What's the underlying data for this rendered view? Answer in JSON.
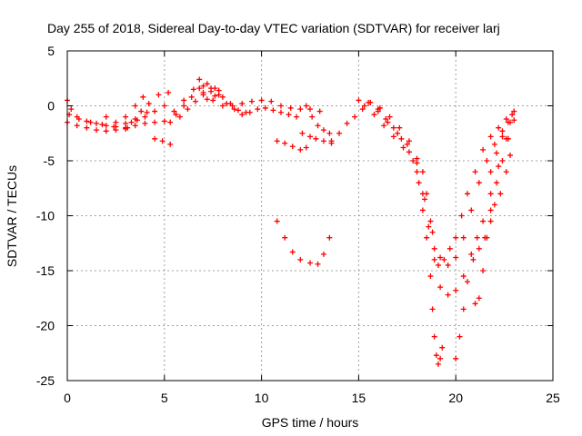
{
  "chart_data": {
    "type": "scatter",
    "title": "Day 255 of 2018, Sidereal Day-to-day VTEC variation (SDTVAR) for receiver larj",
    "xlabel": "GPS time / hours",
    "ylabel": "SDTVAR / TECUs",
    "xlim": [
      0,
      25
    ],
    "ylim": [
      -25,
      5
    ],
    "xticks": [
      0,
      5,
      10,
      15,
      20,
      25
    ],
    "yticks": [
      5,
      0,
      -5,
      -10,
      -15,
      -20,
      -25
    ],
    "grid": true,
    "marker": "plus",
    "color": "#ff0000",
    "series": [
      {
        "points": [
          [
            0.0,
            0.5
          ],
          [
            0.2,
            -0.3
          ],
          [
            0.5,
            -1.0
          ],
          [
            1.0,
            -1.4
          ],
          [
            1.5,
            -1.6
          ],
          [
            2.0,
            -1.8
          ],
          [
            2.5,
            -1.9
          ],
          [
            3.0,
            -1.6
          ],
          [
            3.5,
            -1.2
          ],
          [
            4.0,
            -1.0
          ],
          [
            4.5,
            -0.5
          ],
          [
            5.0,
            0.0
          ],
          [
            0.0,
            -1.5
          ],
          [
            0.5,
            -1.8
          ],
          [
            1.0,
            -2.0
          ],
          [
            1.5,
            -2.2
          ],
          [
            2.0,
            -2.3
          ],
          [
            2.5,
            -2.2
          ],
          [
            3.0,
            -2.0
          ],
          [
            3.5,
            -1.8
          ],
          [
            4.0,
            -1.6
          ],
          [
            4.5,
            -1.5
          ],
          [
            5.0,
            -1.4
          ],
          [
            0.1,
            -0.8
          ],
          [
            0.6,
            -1.2
          ],
          [
            1.2,
            -1.5
          ],
          [
            1.8,
            -1.7
          ],
          [
            2.4,
            -1.9
          ],
          [
            3.0,
            -2.1
          ],
          [
            3.3,
            -1.5
          ],
          [
            3.8,
            -0.5
          ],
          [
            4.2,
            0.2
          ],
          [
            4.7,
            1.0
          ],
          [
            5.2,
            1.2
          ],
          [
            2.0,
            -1.0
          ],
          [
            2.5,
            -1.5
          ],
          [
            3.0,
            -1.0
          ],
          [
            3.5,
            0.0
          ],
          [
            3.9,
            0.8
          ],
          [
            3.1,
            -2.0
          ],
          [
            3.6,
            -1.3
          ],
          [
            4.1,
            -0.6
          ],
          [
            4.5,
            -3.0
          ],
          [
            4.9,
            -3.2
          ],
          [
            5.3,
            -3.5
          ],
          [
            5.3,
            -1.5
          ],
          [
            5.6,
            -0.8
          ],
          [
            6.0,
            0.0
          ],
          [
            6.4,
            0.8
          ],
          [
            6.8,
            1.6
          ],
          [
            7.2,
            2.0
          ],
          [
            7.6,
            1.6
          ],
          [
            8.0,
            0.8
          ],
          [
            8.4,
            0.2
          ],
          [
            8.8,
            -0.4
          ],
          [
            9.2,
            -0.6
          ],
          [
            5.5,
            -0.5
          ],
          [
            6.0,
            0.5
          ],
          [
            6.5,
            1.5
          ],
          [
            6.8,
            2.4
          ],
          [
            7.0,
            1.8
          ],
          [
            7.5,
            0.5
          ],
          [
            8.0,
            0.0
          ],
          [
            8.5,
            0.0
          ],
          [
            9.0,
            0.2
          ],
          [
            9.5,
            0.4
          ],
          [
            10.0,
            0.5
          ],
          [
            10.5,
            0.4
          ],
          [
            11.0,
            0.0
          ],
          [
            11.5,
            -0.2
          ],
          [
            12.0,
            -0.3
          ],
          [
            12.5,
            -0.3
          ],
          [
            13.0,
            -0.5
          ],
          [
            5.8,
            -1.0
          ],
          [
            6.2,
            -0.3
          ],
          [
            6.6,
            0.4
          ],
          [
            7.0,
            1.0
          ],
          [
            7.4,
            1.3
          ],
          [
            7.8,
            1.0
          ],
          [
            8.2,
            0.2
          ],
          [
            8.6,
            -0.3
          ],
          [
            9.0,
            -0.8
          ],
          [
            9.4,
            -0.6
          ],
          [
            9.8,
            -0.3
          ],
          [
            10.2,
            -0.2
          ],
          [
            10.6,
            -0.4
          ],
          [
            11.0,
            -0.6
          ],
          [
            11.4,
            -0.8
          ],
          [
            11.8,
            -1.0
          ],
          [
            7.0,
            1.2
          ],
          [
            7.2,
            0.6
          ],
          [
            7.4,
            1.6
          ],
          [
            7.6,
            0.9
          ],
          [
            7.8,
            1.4
          ],
          [
            10.8,
            -3.2
          ],
          [
            11.2,
            -3.4
          ],
          [
            11.6,
            -3.7
          ],
          [
            12.0,
            -4.0
          ],
          [
            12.3,
            -3.8
          ],
          [
            12.1,
            -2.5
          ],
          [
            12.5,
            -2.8
          ],
          [
            12.8,
            -3.0
          ],
          [
            13.2,
            -3.2
          ],
          [
            13.6,
            -3.4
          ],
          [
            12.3,
            0.0
          ],
          [
            12.6,
            -1.0
          ],
          [
            12.9,
            -1.8
          ],
          [
            13.2,
            -2.2
          ],
          [
            13.5,
            -2.5
          ],
          [
            10.8,
            -10.5
          ],
          [
            11.2,
            -12.0
          ],
          [
            11.6,
            -13.3
          ],
          [
            12.0,
            -14.0
          ],
          [
            12.5,
            -14.3
          ],
          [
            12.9,
            -14.4
          ],
          [
            13.2,
            -13.5
          ],
          [
            13.5,
            -12.0
          ],
          [
            13.6,
            -3.2
          ],
          [
            14.0,
            -2.5
          ],
          [
            14.4,
            -1.6
          ],
          [
            14.8,
            -1.0
          ],
          [
            15.2,
            -0.3
          ],
          [
            15.6,
            0.3
          ],
          [
            15.0,
            0.5
          ],
          [
            15.5,
            0.3
          ],
          [
            16.0,
            -0.5
          ],
          [
            16.5,
            -1.5
          ],
          [
            17.0,
            -2.5
          ],
          [
            17.5,
            -3.5
          ],
          [
            18.0,
            -4.8
          ],
          [
            18.3,
            -6.0
          ],
          [
            18.5,
            -8.0
          ],
          [
            18.7,
            -10.5
          ],
          [
            18.9,
            -13.0
          ],
          [
            19.1,
            -14.5
          ],
          [
            19.4,
            -14.0
          ],
          [
            19.7,
            -13.0
          ],
          [
            20.0,
            -12.0
          ],
          [
            20.3,
            -10.0
          ],
          [
            20.6,
            -8.0
          ],
          [
            21.0,
            -6.0
          ],
          [
            21.4,
            -4.0
          ],
          [
            21.8,
            -2.8
          ],
          [
            22.2,
            -2.0
          ],
          [
            22.6,
            -1.2
          ],
          [
            22.9,
            -0.8
          ],
          [
            15.3,
            0.0
          ],
          [
            15.8,
            -0.8
          ],
          [
            16.3,
            -1.8
          ],
          [
            16.8,
            -2.8
          ],
          [
            17.3,
            -3.8
          ],
          [
            17.8,
            -5.0
          ],
          [
            18.1,
            -7.0
          ],
          [
            18.3,
            -9.5
          ],
          [
            18.5,
            -12.0
          ],
          [
            18.7,
            -15.5
          ],
          [
            18.8,
            -18.5
          ],
          [
            18.9,
            -21.0
          ],
          [
            19.0,
            -22.7
          ],
          [
            19.1,
            -23.5
          ],
          [
            19.2,
            -23.0
          ],
          [
            19.3,
            -22.0
          ],
          [
            15.6,
            0.3
          ],
          [
            16.1,
            -0.2
          ],
          [
            16.6,
            -1.0
          ],
          [
            17.1,
            -2.0
          ],
          [
            17.6,
            -3.2
          ],
          [
            18.0,
            -5.2
          ],
          [
            18.3,
            -8.0
          ],
          [
            18.6,
            -11.0
          ],
          [
            18.9,
            -14.0
          ],
          [
            19.2,
            -16.5
          ],
          [
            19.6,
            -17.2
          ],
          [
            20.0,
            -16.8
          ],
          [
            20.4,
            -15.5
          ],
          [
            20.8,
            -13.5
          ],
          [
            21.1,
            -12.0
          ],
          [
            21.4,
            -10.5
          ],
          [
            21.8,
            -8.0
          ],
          [
            22.2,
            -5.5
          ],
          [
            22.6,
            -3.0
          ],
          [
            23.0,
            -1.3
          ],
          [
            16.0,
            -0.3
          ],
          [
            16.4,
            -1.2
          ],
          [
            16.8,
            -2.0
          ],
          [
            17.2,
            -3.0
          ],
          [
            17.6,
            -4.2
          ],
          [
            18.0,
            -6.0
          ],
          [
            18.4,
            -8.5
          ],
          [
            18.8,
            -11.5
          ],
          [
            19.2,
            -13.8
          ],
          [
            19.6,
            -14.5
          ],
          [
            20.0,
            -13.8
          ],
          [
            20.4,
            -12.0
          ],
          [
            20.8,
            -9.5
          ],
          [
            21.2,
            -7.0
          ],
          [
            21.6,
            -5.0
          ],
          [
            22.0,
            -3.5
          ],
          [
            22.4,
            -2.3
          ],
          [
            22.8,
            -1.5
          ],
          [
            20.0,
            -23.0
          ],
          [
            20.2,
            -21.0
          ],
          [
            20.4,
            -18.5
          ],
          [
            20.6,
            -16.0
          ],
          [
            20.9,
            -14.0
          ],
          [
            21.2,
            -13.0
          ],
          [
            21.5,
            -12.0
          ],
          [
            21.8,
            -10.5
          ],
          [
            22.0,
            -9.0
          ],
          [
            22.3,
            -8.0
          ],
          [
            22.6,
            -6.0
          ],
          [
            22.8,
            -4.5
          ],
          [
            21.0,
            -18.0
          ],
          [
            21.2,
            -17.5
          ],
          [
            21.4,
            -15.0
          ],
          [
            21.6,
            -12.0
          ],
          [
            21.8,
            -9.5
          ],
          [
            22.1,
            -7.0
          ],
          [
            22.4,
            -5.0
          ],
          [
            22.7,
            -3.0
          ],
          [
            21.8,
            -6.0
          ],
          [
            22.1,
            -4.3
          ],
          [
            22.4,
            -2.8
          ],
          [
            22.7,
            -1.5
          ],
          [
            23.0,
            -0.5
          ]
        ]
      }
    ]
  }
}
